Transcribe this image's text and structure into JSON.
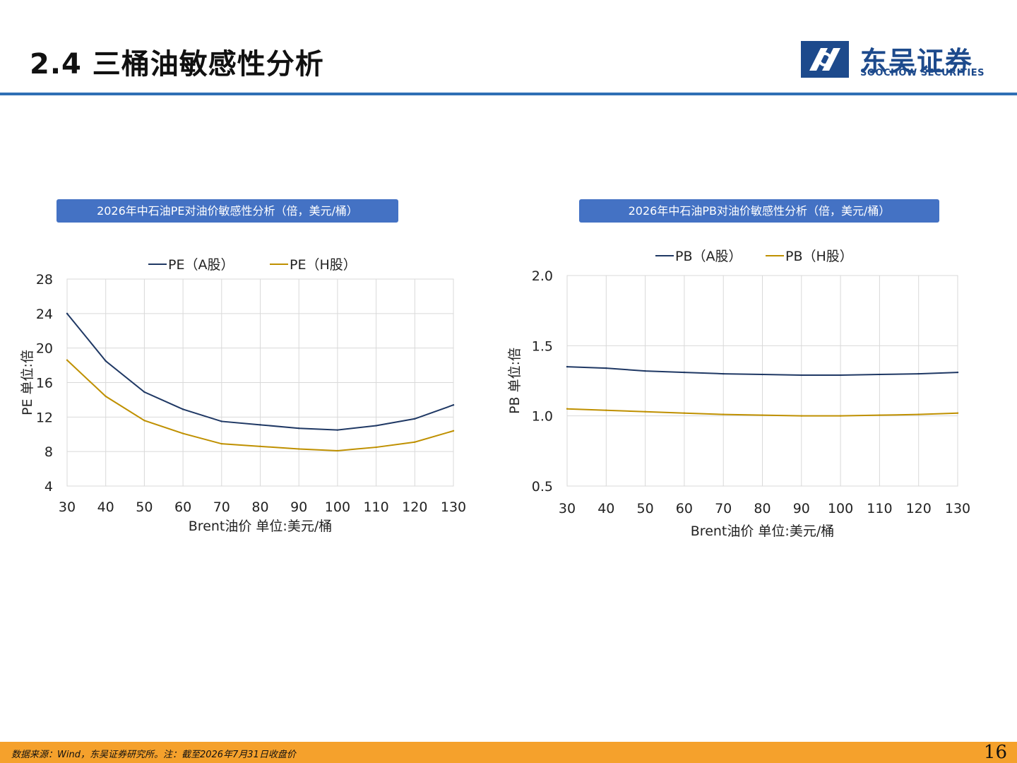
{
  "header": {
    "title": "2.4 三桶油敏感性分析",
    "logo_cn": "东吴证券",
    "logo_en": "SOOCHOW SECURITIES"
  },
  "charts": {
    "pe_header": "2026年中石油PE对油价敏感性分析（倍，美元/桶）",
    "pb_header": "2026年中石油PB对油价敏感性分析（倍，美元/桶）"
  },
  "colors": {
    "series_a": "#1f3864",
    "series_h": "#bf9000",
    "grid": "#d9d9d9",
    "header_bar": "#4472c4",
    "rule": "#2f6fb5",
    "footer": "#f5a12c"
  },
  "footer": {
    "note": "数据来源：Wind，东吴证券研究所。注：截至2026年7月31日收盘价",
    "page": "16"
  },
  "chart_data": [
    {
      "type": "line",
      "x": [
        30,
        40,
        50,
        60,
        70,
        80,
        90,
        100,
        110,
        120,
        130
      ],
      "series": [
        {
          "name": "PE（A股）",
          "values": [
            24.0,
            18.5,
            14.9,
            12.9,
            11.5,
            11.1,
            10.7,
            10.5,
            11.0,
            11.8,
            13.4
          ]
        },
        {
          "name": "PE（H股）",
          "values": [
            18.6,
            14.4,
            11.6,
            10.1,
            8.9,
            8.6,
            8.3,
            8.1,
            8.5,
            9.1,
            10.4
          ]
        }
      ],
      "xlabel": "Brent油价  单位:美元/桶",
      "ylabel": "PE  单位:倍",
      "xticks": [
        "30",
        "40",
        "50",
        "60",
        "70",
        "80",
        "90",
        "100",
        "110",
        "120",
        "130"
      ],
      "yticks": [
        "4",
        "8",
        "12",
        "16",
        "20",
        "24",
        "28"
      ],
      "xlim": [
        30,
        130
      ],
      "ylim": [
        4,
        28
      ],
      "grid": true,
      "legend": "top"
    },
    {
      "type": "line",
      "x": [
        30,
        40,
        50,
        60,
        70,
        80,
        90,
        100,
        110,
        120,
        130
      ],
      "series": [
        {
          "name": "PB（A股）",
          "values": [
            1.35,
            1.34,
            1.32,
            1.31,
            1.3,
            1.295,
            1.29,
            1.29,
            1.295,
            1.3,
            1.31
          ]
        },
        {
          "name": "PB（H股）",
          "values": [
            1.05,
            1.04,
            1.03,
            1.02,
            1.01,
            1.005,
            1.0,
            1.0,
            1.005,
            1.01,
            1.02
          ]
        }
      ],
      "xlabel": "Brent油价  单位:美元/桶",
      "ylabel": "PB  单位:倍",
      "xticks": [
        "30",
        "40",
        "50",
        "60",
        "70",
        "80",
        "90",
        "100",
        "110",
        "120",
        "130"
      ],
      "yticks": [
        "0.5",
        "1.0",
        "1.5",
        "2.0"
      ],
      "xlim": [
        30,
        130
      ],
      "ylim": [
        0.5,
        2.0
      ],
      "grid": true,
      "legend": "top"
    }
  ]
}
